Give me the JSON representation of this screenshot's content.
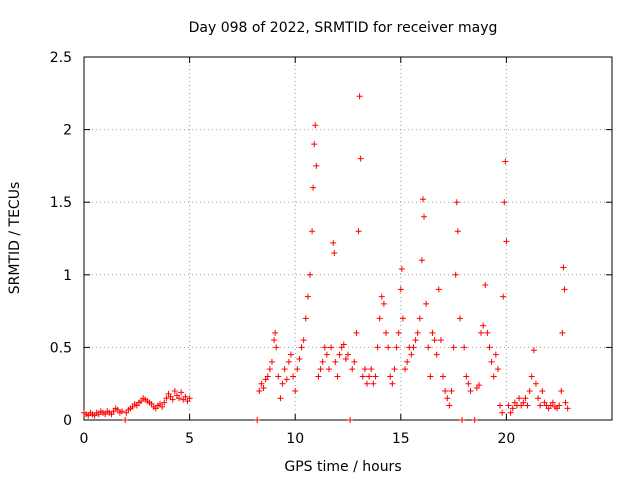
{
  "chart_data": {
    "type": "scatter",
    "title": "Day 098 of 2022, SRMTID for receiver mayg",
    "xlabel": "GPS time / hours",
    "ylabel": "SRMTID / TECUs",
    "xlim": [
      0,
      25
    ],
    "ylim": [
      0,
      2.5
    ],
    "grid": true,
    "x_ticks": [
      0,
      5,
      10,
      15,
      20
    ],
    "x_tick_labels": [
      "0",
      "5",
      "10",
      "15",
      "20"
    ],
    "y_ticks": [
      0,
      0.5,
      1,
      1.5,
      2,
      2.5
    ],
    "y_tick_labels": [
      "0",
      "0.5",
      "1",
      "1.5",
      "2",
      "2.5"
    ],
    "marker": "plus",
    "series": [
      {
        "name": "SRMTID",
        "color": "#ff0000",
        "points": [
          [
            0.0,
            0.05
          ],
          [
            0.1,
            0.04
          ],
          [
            0.2,
            0.03
          ],
          [
            0.3,
            0.05
          ],
          [
            0.4,
            0.04
          ],
          [
            0.5,
            0.03
          ],
          [
            0.6,
            0.05
          ],
          [
            0.7,
            0.04
          ],
          [
            0.8,
            0.06
          ],
          [
            0.9,
            0.05
          ],
          [
            1.0,
            0.04
          ],
          [
            1.1,
            0.06
          ],
          [
            1.2,
            0.05
          ],
          [
            1.3,
            0.04
          ],
          [
            1.4,
            0.06
          ],
          [
            1.5,
            0.08
          ],
          [
            1.6,
            0.07
          ],
          [
            1.7,
            0.05
          ],
          [
            1.8,
            0.06
          ],
          [
            1.95,
            0.0
          ],
          [
            2.0,
            0.05
          ],
          [
            2.1,
            0.07
          ],
          [
            2.2,
            0.08
          ],
          [
            2.3,
            0.09
          ],
          [
            2.4,
            0.11
          ],
          [
            2.5,
            0.1
          ],
          [
            2.6,
            0.12
          ],
          [
            2.7,
            0.13
          ],
          [
            2.8,
            0.15
          ],
          [
            2.9,
            0.14
          ],
          [
            3.0,
            0.13
          ],
          [
            3.1,
            0.12
          ],
          [
            3.2,
            0.11
          ],
          [
            3.3,
            0.09
          ],
          [
            3.4,
            0.08
          ],
          [
            3.5,
            0.1
          ],
          [
            3.6,
            0.11
          ],
          [
            3.7,
            0.09
          ],
          [
            3.8,
            0.12
          ],
          [
            3.9,
            0.15
          ],
          [
            4.0,
            0.18
          ],
          [
            4.1,
            0.16
          ],
          [
            4.2,
            0.14
          ],
          [
            4.3,
            0.2
          ],
          [
            4.4,
            0.17
          ],
          [
            4.5,
            0.15
          ],
          [
            4.6,
            0.19
          ],
          [
            4.7,
            0.14
          ],
          [
            4.8,
            0.16
          ],
          [
            4.9,
            0.13
          ],
          [
            5.0,
            0.15
          ],
          [
            8.2,
            0.0
          ],
          [
            8.3,
            0.2
          ],
          [
            8.4,
            0.25
          ],
          [
            8.5,
            0.22
          ],
          [
            8.6,
            0.28
          ],
          [
            8.7,
            0.3
          ],
          [
            8.8,
            0.35
          ],
          [
            8.9,
            0.4
          ],
          [
            9.0,
            0.55
          ],
          [
            9.05,
            0.6
          ],
          [
            9.1,
            0.5
          ],
          [
            9.2,
            0.3
          ],
          [
            9.3,
            0.15
          ],
          [
            9.4,
            0.25
          ],
          [
            9.5,
            0.35
          ],
          [
            9.6,
            0.28
          ],
          [
            9.7,
            0.4
          ],
          [
            9.8,
            0.45
          ],
          [
            9.9,
            0.3
          ],
          [
            10.0,
            0.2
          ],
          [
            10.1,
            0.35
          ],
          [
            10.2,
            0.42
          ],
          [
            10.3,
            0.5
          ],
          [
            10.4,
            0.55
          ],
          [
            10.5,
            0.7
          ],
          [
            10.6,
            0.85
          ],
          [
            10.7,
            1.0
          ],
          [
            10.8,
            1.3
          ],
          [
            10.85,
            1.6
          ],
          [
            10.9,
            1.9
          ],
          [
            10.95,
            2.03
          ],
          [
            11.0,
            1.75
          ],
          [
            11.1,
            0.3
          ],
          [
            11.2,
            0.35
          ],
          [
            11.3,
            0.4
          ],
          [
            11.4,
            0.5
          ],
          [
            11.5,
            0.45
          ],
          [
            11.6,
            0.35
          ],
          [
            11.7,
            0.5
          ],
          [
            11.8,
            1.22
          ],
          [
            11.85,
            1.15
          ],
          [
            11.9,
            0.4
          ],
          [
            12.0,
            0.3
          ],
          [
            12.1,
            0.45
          ],
          [
            12.2,
            0.5
          ],
          [
            12.3,
            0.52
          ],
          [
            12.4,
            0.42
          ],
          [
            12.5,
            0.45
          ],
          [
            12.6,
            0.0
          ],
          [
            12.7,
            0.35
          ],
          [
            12.8,
            0.4
          ],
          [
            12.9,
            0.6
          ],
          [
            13.0,
            1.3
          ],
          [
            13.05,
            2.23
          ],
          [
            13.1,
            1.8
          ],
          [
            13.2,
            0.3
          ],
          [
            13.3,
            0.35
          ],
          [
            13.4,
            0.25
          ],
          [
            13.5,
            0.3
          ],
          [
            13.6,
            0.35
          ],
          [
            13.7,
            0.25
          ],
          [
            13.8,
            0.3
          ],
          [
            13.9,
            0.5
          ],
          [
            14.0,
            0.7
          ],
          [
            14.1,
            0.85
          ],
          [
            14.2,
            0.8
          ],
          [
            14.3,
            0.6
          ],
          [
            14.4,
            0.5
          ],
          [
            14.5,
            0.3
          ],
          [
            14.6,
            0.25
          ],
          [
            14.7,
            0.35
          ],
          [
            14.8,
            0.5
          ],
          [
            14.9,
            0.6
          ],
          [
            15.0,
            0.9
          ],
          [
            15.05,
            1.04
          ],
          [
            15.1,
            0.7
          ],
          [
            15.2,
            0.35
          ],
          [
            15.3,
            0.4
          ],
          [
            15.4,
            0.5
          ],
          [
            15.5,
            0.45
          ],
          [
            15.6,
            0.5
          ],
          [
            15.7,
            0.55
          ],
          [
            15.8,
            0.6
          ],
          [
            15.9,
            0.7
          ],
          [
            16.0,
            1.1
          ],
          [
            16.05,
            1.52
          ],
          [
            16.1,
            1.4
          ],
          [
            16.2,
            0.8
          ],
          [
            16.3,
            0.5
          ],
          [
            16.4,
            0.3
          ],
          [
            16.5,
            0.6
          ],
          [
            16.6,
            0.55
          ],
          [
            16.7,
            0.45
          ],
          [
            16.8,
            0.9
          ],
          [
            16.9,
            0.55
          ],
          [
            17.0,
            0.3
          ],
          [
            17.1,
            0.2
          ],
          [
            17.2,
            0.15
          ],
          [
            17.3,
            0.1
          ],
          [
            17.4,
            0.2
          ],
          [
            17.5,
            0.5
          ],
          [
            17.6,
            1.0
          ],
          [
            17.65,
            1.5
          ],
          [
            17.7,
            1.3
          ],
          [
            17.8,
            0.7
          ],
          [
            17.9,
            0.0
          ],
          [
            18.0,
            0.5
          ],
          [
            18.1,
            0.3
          ],
          [
            18.2,
            0.25
          ],
          [
            18.3,
            0.2
          ],
          [
            18.5,
            0.0
          ],
          [
            18.6,
            0.22
          ],
          [
            18.7,
            0.24
          ],
          [
            18.8,
            0.6
          ],
          [
            18.9,
            0.65
          ],
          [
            19.0,
            0.93
          ],
          [
            19.1,
            0.6
          ],
          [
            19.2,
            0.5
          ],
          [
            19.3,
            0.4
          ],
          [
            19.4,
            0.3
          ],
          [
            19.5,
            0.45
          ],
          [
            19.6,
            0.35
          ],
          [
            19.7,
            0.1
          ],
          [
            19.8,
            0.05
          ],
          [
            19.85,
            0.85
          ],
          [
            19.9,
            1.5
          ],
          [
            19.95,
            1.78
          ],
          [
            20.0,
            1.23
          ],
          [
            20.1,
            0.1
          ],
          [
            20.2,
            0.05
          ],
          [
            20.3,
            0.08
          ],
          [
            20.4,
            0.12
          ],
          [
            20.5,
            0.1
          ],
          [
            20.6,
            0.15
          ],
          [
            20.7,
            0.1
          ],
          [
            20.8,
            0.12
          ],
          [
            20.9,
            0.15
          ],
          [
            21.0,
            0.1
          ],
          [
            21.1,
            0.2
          ],
          [
            21.2,
            0.3
          ],
          [
            21.3,
            0.48
          ],
          [
            21.4,
            0.25
          ],
          [
            21.5,
            0.15
          ],
          [
            21.6,
            0.1
          ],
          [
            21.7,
            0.2
          ],
          [
            21.8,
            0.12
          ],
          [
            21.9,
            0.1
          ],
          [
            22.0,
            0.08
          ],
          [
            22.1,
            0.1
          ],
          [
            22.2,
            0.12
          ],
          [
            22.3,
            0.09
          ],
          [
            22.4,
            0.08
          ],
          [
            22.5,
            0.1
          ],
          [
            22.6,
            0.2
          ],
          [
            22.65,
            0.6
          ],
          [
            22.7,
            1.05
          ],
          [
            22.75,
            0.9
          ],
          [
            22.8,
            0.12
          ],
          [
            22.9,
            0.08
          ]
        ]
      }
    ]
  }
}
